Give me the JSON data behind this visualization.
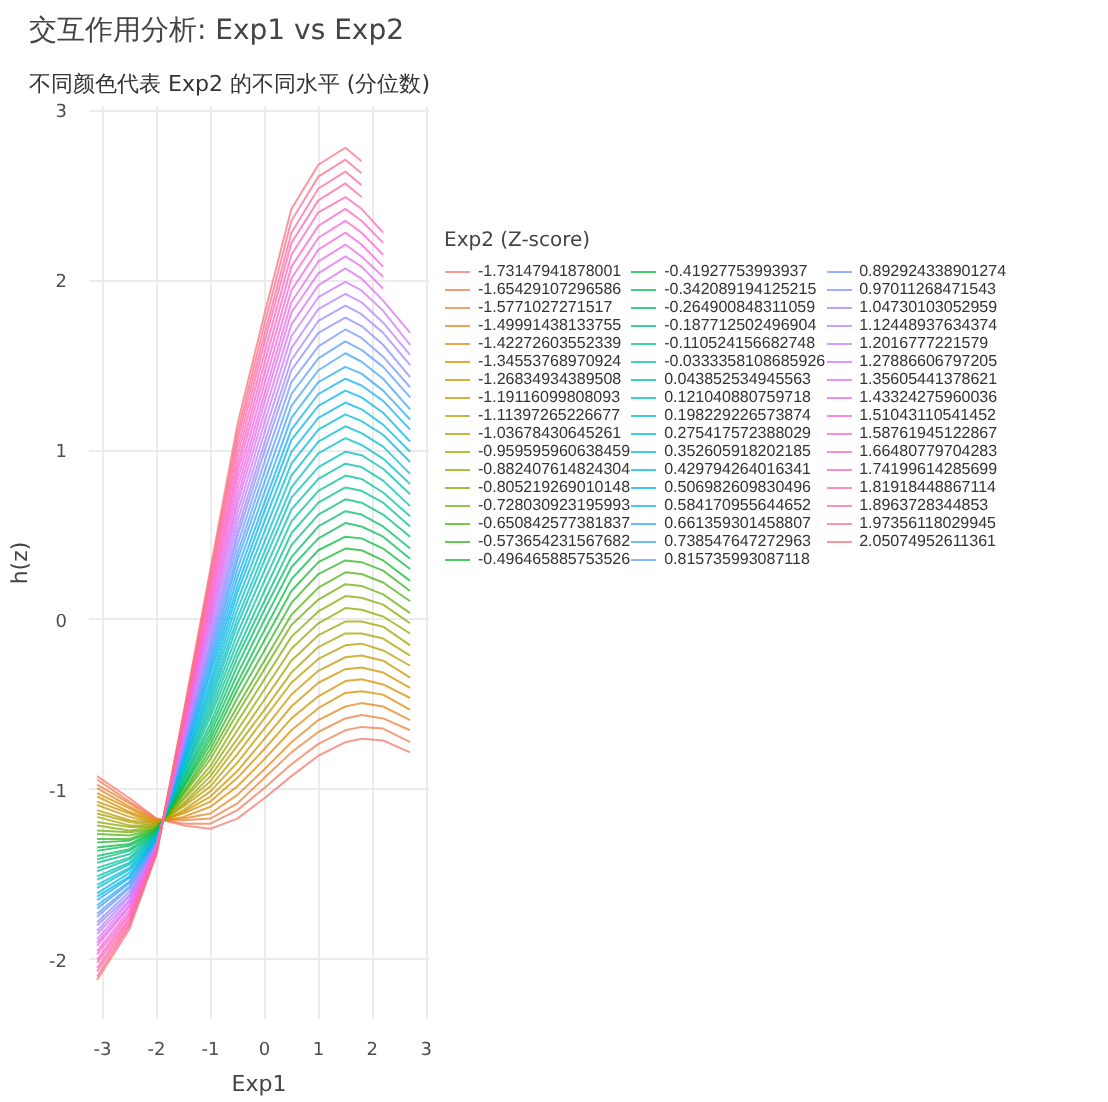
{
  "chart_data": {
    "type": "line",
    "title": "交互作用分析: Exp1 vs Exp2",
    "subtitle": "不同颜色代表 Exp2 的不同水平 (分位数)",
    "xlabel": "Exp1",
    "ylabel": "h(z)",
    "legend_title": "Exp2 (Z-score)",
    "x": [
      -3.1,
      -2.5,
      -2,
      -1.5,
      -1,
      -0.5,
      0,
      0.5,
      1,
      1.5,
      1.8,
      2.2,
      2.7
    ],
    "xlim": [
      -3.25,
      3.05
    ],
    "ylim": [
      -2.35,
      3.02
    ],
    "xticks": [
      -3,
      -2,
      -1,
      0,
      1,
      2,
      3
    ],
    "yticks": [
      -2,
      -1,
      0,
      1,
      2,
      3
    ],
    "grid": true,
    "legend": "right",
    "series": [
      {
        "name": "-1.73147941878001",
        "color": "#f8766d",
        "values": [
          -0.92,
          -1.05,
          -1.17,
          -1.21,
          -1.23,
          -1.17,
          -1.05,
          -0.92,
          -0.8,
          -0.72,
          -0.7,
          -0.71,
          -0.78
        ]
      },
      {
        "name": "-1.65429107296586",
        "color": "#f27b53",
        "values": [
          -0.94,
          -1.07,
          -1.17,
          -1.2,
          -1.2,
          -1.12,
          -0.99,
          -0.85,
          -0.73,
          -0.65,
          -0.63,
          -0.64,
          -0.72
        ]
      },
      {
        "name": "-1.5771027271517",
        "color": "#ec8139",
        "values": [
          -0.97,
          -1.08,
          -1.18,
          -1.18,
          -1.17,
          -1.08,
          -0.93,
          -0.78,
          -0.66,
          -0.58,
          -0.56,
          -0.58,
          -0.65
        ]
      },
      {
        "name": "-1.49991438133755",
        "color": "#e5861f",
        "values": [
          -0.99,
          -1.1,
          -1.18,
          -1.17,
          -1.14,
          -1.03,
          -0.88,
          -0.72,
          -0.59,
          -0.51,
          -0.49,
          -0.51,
          -0.59
        ]
      },
      {
        "name": "-1.42272603552339",
        "color": "#df8b04",
        "values": [
          -1.02,
          -1.11,
          -1.19,
          -1.16,
          -1.1,
          -0.98,
          -0.82,
          -0.65,
          -0.52,
          -0.43,
          -0.42,
          -0.44,
          -0.53
        ]
      },
      {
        "name": "-1.34553768970924",
        "color": "#d69000",
        "values": [
          -1.04,
          -1.13,
          -1.19,
          -1.14,
          -1.07,
          -0.93,
          -0.76,
          -0.58,
          -0.45,
          -0.36,
          -0.35,
          -0.38,
          -0.46
        ]
      },
      {
        "name": "-1.26834934389508",
        "color": "#cd9400",
        "values": [
          -1.07,
          -1.14,
          -1.2,
          -1.13,
          -1.04,
          -0.89,
          -0.7,
          -0.51,
          -0.37,
          -0.29,
          -0.28,
          -0.31,
          -0.4
        ]
      },
      {
        "name": "-1.19116099808093",
        "color": "#c49900",
        "values": [
          -1.09,
          -1.16,
          -1.2,
          -1.12,
          -1.01,
          -0.84,
          -0.64,
          -0.44,
          -0.3,
          -0.22,
          -0.21,
          -0.24,
          -0.34
        ]
      },
      {
        "name": "-1.11397265226677",
        "color": "#ba9e00",
        "values": [
          -1.12,
          -1.18,
          -1.2,
          -1.1,
          -0.98,
          -0.79,
          -0.58,
          -0.37,
          -0.23,
          -0.15,
          -0.14,
          -0.18,
          -0.27
        ]
      },
      {
        "name": "-1.03678430645261",
        "color": "#aea100",
        "values": [
          -1.14,
          -1.19,
          -1.21,
          -1.09,
          -0.95,
          -0.74,
          -0.53,
          -0.31,
          -0.16,
          -0.08,
          -0.08,
          -0.11,
          -0.21
        ]
      },
      {
        "name": "-0.959595960638459",
        "color": "#9fa500",
        "values": [
          -1.16,
          -1.21,
          -1.21,
          -1.08,
          -0.92,
          -0.7,
          -0.47,
          -0.24,
          -0.09,
          -0.01,
          -0.01,
          -0.04,
          -0.15
        ]
      },
      {
        "name": "-0.882407614824304",
        "color": "#91a900",
        "values": [
          -1.19,
          -1.22,
          -1.22,
          -1.06,
          -0.89,
          -0.65,
          -0.41,
          -0.17,
          -0.02,
          0.07,
          0.06,
          0.02,
          -0.08
        ]
      },
      {
        "name": "-0.805219269010148",
        "color": "#83ac00",
        "values": [
          -1.21,
          -1.24,
          -1.22,
          -1.05,
          -0.86,
          -0.6,
          -0.35,
          -0.1,
          0.05,
          0.14,
          0.13,
          0.09,
          -0.02
        ]
      },
      {
        "name": "-0.728030923195993",
        "color": "#6daf07",
        "values": [
          -1.24,
          -1.25,
          -1.23,
          -1.03,
          -0.82,
          -0.55,
          -0.29,
          -0.03,
          0.12,
          0.21,
          0.2,
          0.15,
          0.04
        ]
      },
      {
        "name": "-0.650842577381837",
        "color": "#4fb214",
        "values": [
          -1.26,
          -1.27,
          -1.23,
          -1.02,
          -0.79,
          -0.51,
          -0.24,
          0.03,
          0.19,
          0.28,
          0.27,
          0.22,
          0.11
        ]
      },
      {
        "name": "-0.573654231567682",
        "color": "#32b522",
        "values": [
          -1.29,
          -1.29,
          -1.23,
          -1.01,
          -0.76,
          -0.46,
          -0.18,
          0.1,
          0.27,
          0.35,
          0.34,
          0.29,
          0.17
        ]
      },
      {
        "name": "-0.496465885753526",
        "color": "#14b82f",
        "values": [
          -1.31,
          -1.3,
          -1.24,
          -0.99,
          -0.73,
          -0.41,
          -0.12,
          0.17,
          0.34,
          0.42,
          0.41,
          0.35,
          0.23
        ]
      },
      {
        "name": "-0.41927753993937",
        "color": "#00bb3f",
        "values": [
          -1.34,
          -1.32,
          -1.24,
          -0.98,
          -0.7,
          -0.37,
          -0.06,
          0.24,
          0.41,
          0.49,
          0.48,
          0.42,
          0.3
        ]
      },
      {
        "name": "-0.342089194125215",
        "color": "#00bc53",
        "values": [
          -1.36,
          -1.33,
          -1.25,
          -0.97,
          -0.67,
          -0.32,
          0.0,
          0.31,
          0.48,
          0.57,
          0.55,
          0.49,
          0.36
        ]
      },
      {
        "name": "-0.264900848311059",
        "color": "#00bd67",
        "values": [
          -1.39,
          -1.35,
          -1.25,
          -0.95,
          -0.64,
          -0.27,
          0.06,
          0.37,
          0.55,
          0.64,
          0.62,
          0.55,
          0.42
        ]
      },
      {
        "name": "-0.187712502496904",
        "color": "#00bf7a",
        "values": [
          -1.41,
          -1.36,
          -1.26,
          -0.94,
          -0.61,
          -0.22,
          0.11,
          0.44,
          0.62,
          0.71,
          0.69,
          0.62,
          0.49
        ]
      },
      {
        "name": "-0.110524156682748",
        "color": "#00c08d",
        "values": [
          -1.43,
          -1.38,
          -1.26,
          -0.93,
          -0.57,
          -0.18,
          0.17,
          0.51,
          0.69,
          0.78,
          0.76,
          0.69,
          0.55
        ]
      },
      {
        "name": "-0.0333358108685926",
        "color": "#00c09b",
        "values": [
          -1.46,
          -1.4,
          -1.26,
          -0.91,
          -0.54,
          -0.13,
          0.23,
          0.58,
          0.76,
          0.85,
          0.83,
          0.75,
          0.61
        ]
      },
      {
        "name": "0.043852534945563",
        "color": "#00bfa9",
        "values": [
          -1.48,
          -1.41,
          -1.27,
          -0.9,
          -0.51,
          -0.08,
          0.29,
          0.65,
          0.83,
          0.92,
          0.9,
          0.82,
          0.67
        ]
      },
      {
        "name": "0.121040880759718",
        "color": "#00bfb6",
        "values": [
          -1.51,
          -1.43,
          -1.27,
          -0.89,
          -0.48,
          -0.03,
          0.35,
          0.72,
          0.9,
          0.99,
          0.97,
          0.89,
          0.74
        ]
      },
      {
        "name": "0.198229226573874",
        "color": "#00bfc4",
        "values": [
          -1.53,
          -1.44,
          -1.28,
          -0.87,
          -0.45,
          0.01,
          0.4,
          0.78,
          0.98,
          1.07,
          1.03,
          0.95,
          0.8
        ]
      },
      {
        "name": "0.275417572388029",
        "color": "#00bccf",
        "values": [
          -1.56,
          -1.46,
          -1.28,
          -0.86,
          -0.42,
          0.06,
          0.46,
          0.85,
          1.05,
          1.14,
          1.1,
          1.02,
          0.86
        ]
      },
      {
        "name": "0.352605918202185",
        "color": "#00bad9",
        "values": [
          -1.58,
          -1.47,
          -1.29,
          -0.85,
          -0.39,
          0.11,
          0.52,
          0.92,
          1.12,
          1.21,
          1.17,
          1.09,
          0.93
        ]
      },
      {
        "name": "0.429794264016341",
        "color": "#00b7e4",
        "values": [
          -1.61,
          -1.49,
          -1.29,
          -0.83,
          -0.36,
          0.16,
          0.58,
          0.99,
          1.19,
          1.28,
          1.24,
          1.15,
          0.99
        ]
      },
      {
        "name": "0.506982609830496",
        "color": "#00b4ee",
        "values": [
          -1.63,
          -1.51,
          -1.29,
          -0.82,
          -0.32,
          0.2,
          0.64,
          1.06,
          1.26,
          1.35,
          1.31,
          1.22,
          1.05
        ]
      },
      {
        "name": "0.584170955644652",
        "color": "#13aff3",
        "values": [
          -1.65,
          -1.52,
          -1.3,
          -0.81,
          -0.29,
          0.25,
          0.69,
          1.12,
          1.33,
          1.42,
          1.38,
          1.29,
          1.12
        ]
      },
      {
        "name": "0.661359301458807",
        "color": "#2ba9f7",
        "values": [
          -1.68,
          -1.54,
          -1.3,
          -0.79,
          -0.26,
          0.3,
          0.75,
          1.19,
          1.4,
          1.49,
          1.45,
          1.35,
          1.18
        ]
      },
      {
        "name": "0.738547647272963",
        "color": "#42a4fa",
        "values": [
          -1.7,
          -1.55,
          -1.31,
          -0.78,
          -0.23,
          0.35,
          0.81,
          1.26,
          1.47,
          1.57,
          1.52,
          1.42,
          1.24
        ]
      },
      {
        "name": "0.815735993087118",
        "color": "#599efe",
        "values": [
          -1.73,
          -1.57,
          -1.31,
          -0.77,
          -0.2,
          0.39,
          0.87,
          1.33,
          1.54,
          1.64,
          1.59,
          1.49,
          1.31
        ]
      },
      {
        "name": "0.892924338901274",
        "color": "#7197ff",
        "values": [
          -1.75,
          -1.58,
          -1.32,
          -0.75,
          -0.17,
          0.44,
          0.93,
          1.4,
          1.61,
          1.71,
          1.66,
          1.55,
          1.37
        ]
      },
      {
        "name": "0.97011268471543",
        "color": "#8a8fff",
        "values": [
          -1.78,
          -1.6,
          -1.32,
          -0.74,
          -0.14,
          0.49,
          0.99,
          1.47,
          1.69,
          1.78,
          1.73,
          1.62,
          1.43
        ]
      },
      {
        "name": "1.04730103052959",
        "color": "#a287ff",
        "values": [
          -1.8,
          -1.62,
          -1.32,
          -0.73,
          -0.11,
          0.53,
          1.04,
          1.53,
          1.76,
          1.85,
          1.8,
          1.69,
          1.5
        ]
      },
      {
        "name": "1.12448937634374",
        "color": "#bb80ff",
        "values": [
          -1.83,
          -1.63,
          -1.33,
          -0.71,
          -0.07,
          0.58,
          1.1,
          1.6,
          1.83,
          1.92,
          1.87,
          1.75,
          1.56
        ]
      },
      {
        "name": "1.2016777221579",
        "color": "#cc79fc",
        "values": [
          -1.85,
          -1.65,
          -1.33,
          -0.7,
          -0.04,
          0.63,
          1.16,
          1.67,
          1.9,
          1.99,
          1.94,
          1.82,
          1.62
        ]
      },
      {
        "name": "1.27886606797205",
        "color": "#d873f5",
        "values": [
          -1.88,
          -1.66,
          -1.34,
          -0.68,
          -0.01,
          0.68,
          1.22,
          1.74,
          1.97,
          2.07,
          2.01,
          1.88,
          1.69
        ]
      },
      {
        "name": "1.35605441378621",
        "color": "#e36eee",
        "values": [
          -1.9,
          -1.68,
          -1.34,
          -0.67,
          0.02,
          0.72,
          1.28,
          1.81,
          2.04,
          2.14,
          2.08,
          1.95,
          null
        ]
      },
      {
        "name": "1.43324275960036",
        "color": "#ee68e8",
        "values": [
          -1.92,
          -1.69,
          -1.35,
          -0.66,
          0.05,
          0.77,
          1.33,
          1.87,
          2.11,
          2.21,
          2.14,
          2.02,
          null
        ]
      },
      {
        "name": "1.51043110541452",
        "color": "#f664df",
        "values": [
          -1.95,
          -1.71,
          -1.35,
          -0.64,
          0.08,
          0.82,
          1.39,
          1.94,
          2.18,
          2.28,
          2.21,
          2.08,
          null
        ]
      },
      {
        "name": "1.58761945122867",
        "color": "#f864d3",
        "values": [
          -1.97,
          -1.73,
          -1.35,
          -0.63,
          0.11,
          0.87,
          1.45,
          2.01,
          2.25,
          2.35,
          2.28,
          2.15,
          null
        ]
      },
      {
        "name": "1.66480779704283",
        "color": "#fb64c6",
        "values": [
          -2.0,
          -1.74,
          -1.36,
          -0.62,
          0.14,
          0.91,
          1.51,
          2.08,
          2.32,
          2.42,
          2.35,
          2.22,
          null
        ]
      },
      {
        "name": "1.74199614285699",
        "color": "#fd64ba",
        "values": [
          -2.02,
          -1.76,
          -1.36,
          -0.6,
          0.18,
          0.96,
          1.57,
          2.15,
          2.4,
          2.49,
          2.42,
          2.28,
          null
        ]
      },
      {
        "name": "1.81918448867114",
        "color": "#ff65ad",
        "values": [
          -2.05,
          -1.77,
          -1.37,
          -0.59,
          0.21,
          1.01,
          1.63,
          2.22,
          2.47,
          2.57,
          2.49,
          null,
          null
        ]
      },
      {
        "name": "1.8963728344853",
        "color": "#fd699d",
        "values": [
          -2.07,
          -1.79,
          -1.37,
          -0.58,
          0.24,
          1.06,
          1.68,
          2.28,
          2.54,
          2.64,
          2.56,
          null,
          null
        ]
      },
      {
        "name": "1.97356118029945",
        "color": "#fb6d8d",
        "values": [
          -2.1,
          -1.8,
          -1.38,
          -0.56,
          0.27,
          1.1,
          1.74,
          2.35,
          2.61,
          2.71,
          2.63,
          null,
          null
        ]
      },
      {
        "name": "2.05074952611361",
        "color": "#fa727d",
        "values": [
          -2.12,
          -1.82,
          -1.38,
          -0.55,
          0.3,
          1.15,
          1.8,
          2.42,
          2.68,
          2.78,
          2.7,
          null,
          null
        ]
      }
    ]
  }
}
